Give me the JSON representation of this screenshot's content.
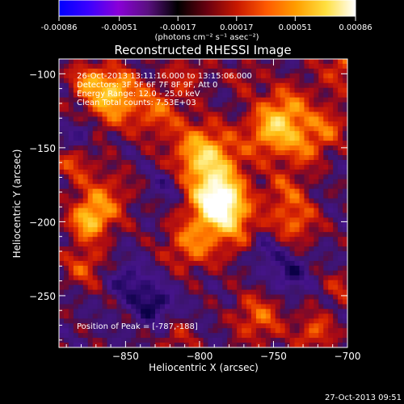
{
  "colorbar": {
    "tick_labels": [
      "-0.00086",
      "-0.00051",
      "-0.00017",
      "0.00017",
      "0.00051",
      "0.00086"
    ],
    "tick_values": [
      -0.00086,
      -0.00051,
      -0.00017,
      0.00017,
      0.00051,
      0.00086
    ],
    "range": [
      -0.00086,
      0.00086
    ],
    "unit_label": "(photons cm⁻² s⁻¹ asec⁻²)",
    "stops": [
      "#0000ff",
      "#3b00ff",
      "#8a00d8",
      "#5a1080",
      "#000000",
      "#6a0010",
      "#c81800",
      "#ff5a00",
      "#ff9e00",
      "#ffe040",
      "#ffffff"
    ]
  },
  "footer": {
    "timestamp": "27-Oct-2013 09:51"
  },
  "chart_data": {
    "type": "heatmap",
    "title": "Reconstructed RHESSI Image",
    "xlabel": "Heliocentric X (arcsec)",
    "ylabel": "Heliocentric Y (arcsec)",
    "xlim": [
      -895,
      -700
    ],
    "ylim": [
      -285,
      -90
    ],
    "x_ticks": [
      -850,
      -800,
      -750,
      -700
    ],
    "x_tick_labels": [
      "−850",
      "−800",
      "−750",
      "−700"
    ],
    "y_ticks": [
      -100,
      -150,
      -200,
      -250
    ],
    "y_tick_labels": [
      "−100",
      "−150",
      "−200",
      "−250"
    ],
    "annotations": [
      "26-Oct-2013 13:11:16.000 to 13:15:06.000",
      "Detectors: 3F 5F 6F 7F 8F 9F, Att 0",
      "Energy Range: 12.0 - 25.0 keV",
      "Clean     Total counts: 7.53E+03"
    ],
    "peak_label": "Position of Peak = [-787,-188]",
    "peak": {
      "x": -787,
      "y": -188
    },
    "grid": false
  }
}
